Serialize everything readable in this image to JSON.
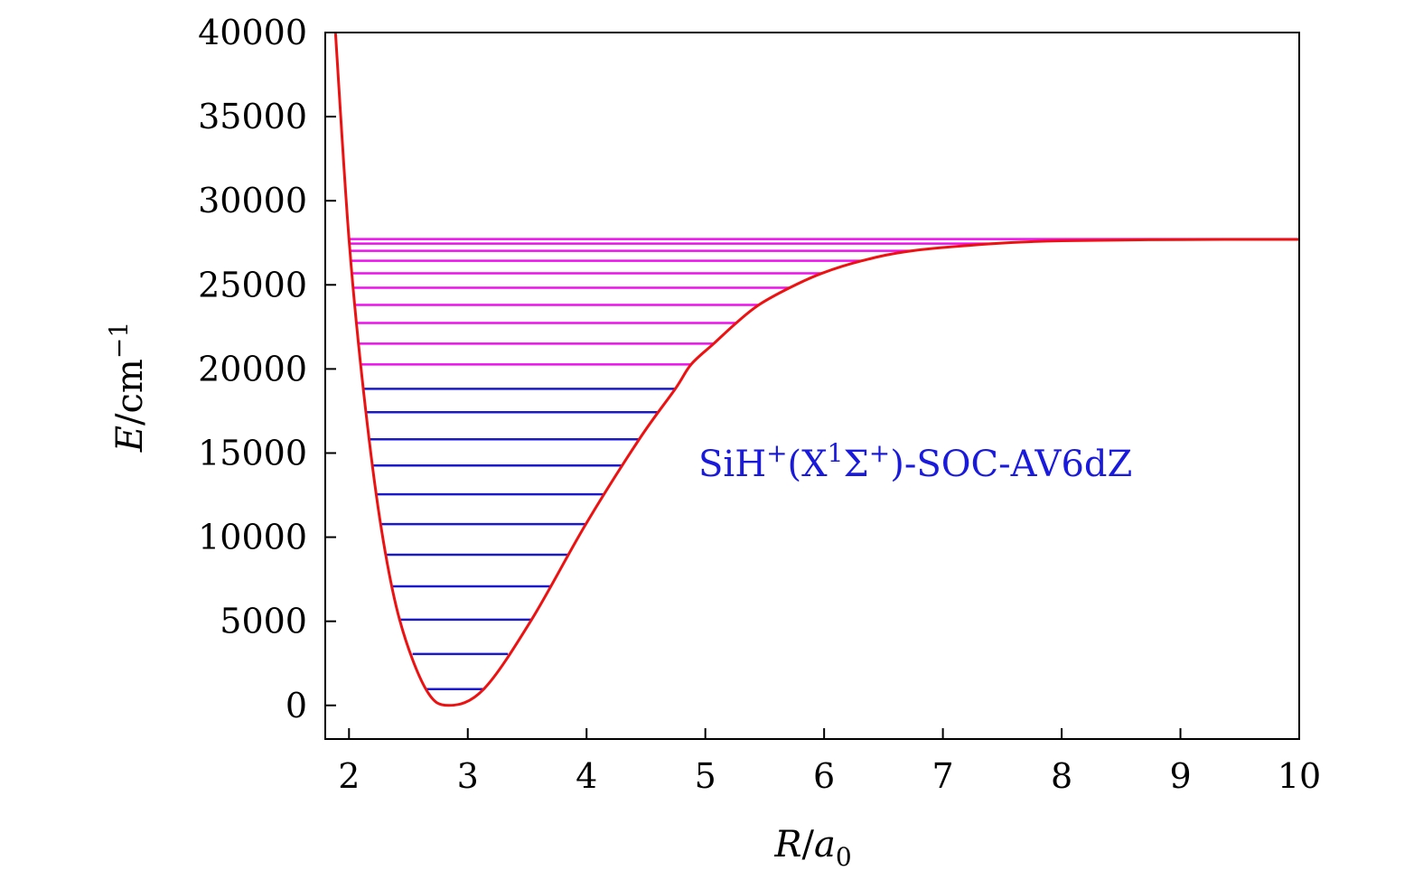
{
  "chart_data": {
    "type": "line",
    "xlabel_main": "R",
    "xlabel_unit": "a",
    "xlabel_sub": "0",
    "ylabel_main": "E",
    "ylabel_unit": "cm",
    "ylabel_sup": "−1",
    "xlim": [
      1.8,
      10
    ],
    "ylim": [
      -2000,
      40000
    ],
    "xticks": [
      2,
      3,
      4,
      5,
      6,
      7,
      8,
      9,
      10
    ],
    "yticks": [
      0,
      5000,
      10000,
      15000,
      20000,
      25000,
      30000,
      35000,
      40000
    ],
    "grid": false,
    "annotation": {
      "base": "SiH",
      "sup1": "+",
      "mid": "(X",
      "sup2": "1",
      "sigma": "Σ",
      "sup3": "+",
      "tail": ")-SOC-AV6dZ"
    },
    "colors": {
      "curve": "#ee1111",
      "lower_levels": "#1a1acc",
      "upper_levels": "#ee11ee",
      "annotation": "#1a1add",
      "axes": "#000000"
    },
    "curve": [
      [
        1.886,
        40000
      ],
      [
        2.0,
        27700
      ],
      [
        2.12,
        18820
      ],
      [
        2.266,
        10777
      ],
      [
        2.426,
        5094
      ],
      [
        2.647,
        965
      ],
      [
        2.84,
        0
      ],
      [
        3.134,
        965
      ],
      [
        3.537,
        5094
      ],
      [
        3.994,
        10777
      ],
      [
        4.443,
        15818
      ],
      [
        4.747,
        18820
      ],
      [
        4.88,
        20268
      ],
      [
        5.07,
        21501
      ],
      [
        5.26,
        22735
      ],
      [
        5.45,
        23807
      ],
      [
        5.71,
        24826
      ],
      [
        5.98,
        25684
      ],
      [
        6.32,
        26434
      ],
      [
        6.74,
        27024
      ],
      [
        7.43,
        27453
      ],
      [
        8.0,
        27620
      ],
      [
        9.0,
        27690
      ],
      [
        10.0,
        27700
      ]
    ],
    "lower_levels": [
      965,
      3056,
      5094,
      7078,
      8954,
      10777,
      12547,
      14263,
      15818,
      17426,
      18820
    ],
    "upper_levels": [
      20268,
      21501,
      22735,
      23807,
      24826,
      25684,
      26434,
      27024,
      27453,
      27721
    ]
  }
}
